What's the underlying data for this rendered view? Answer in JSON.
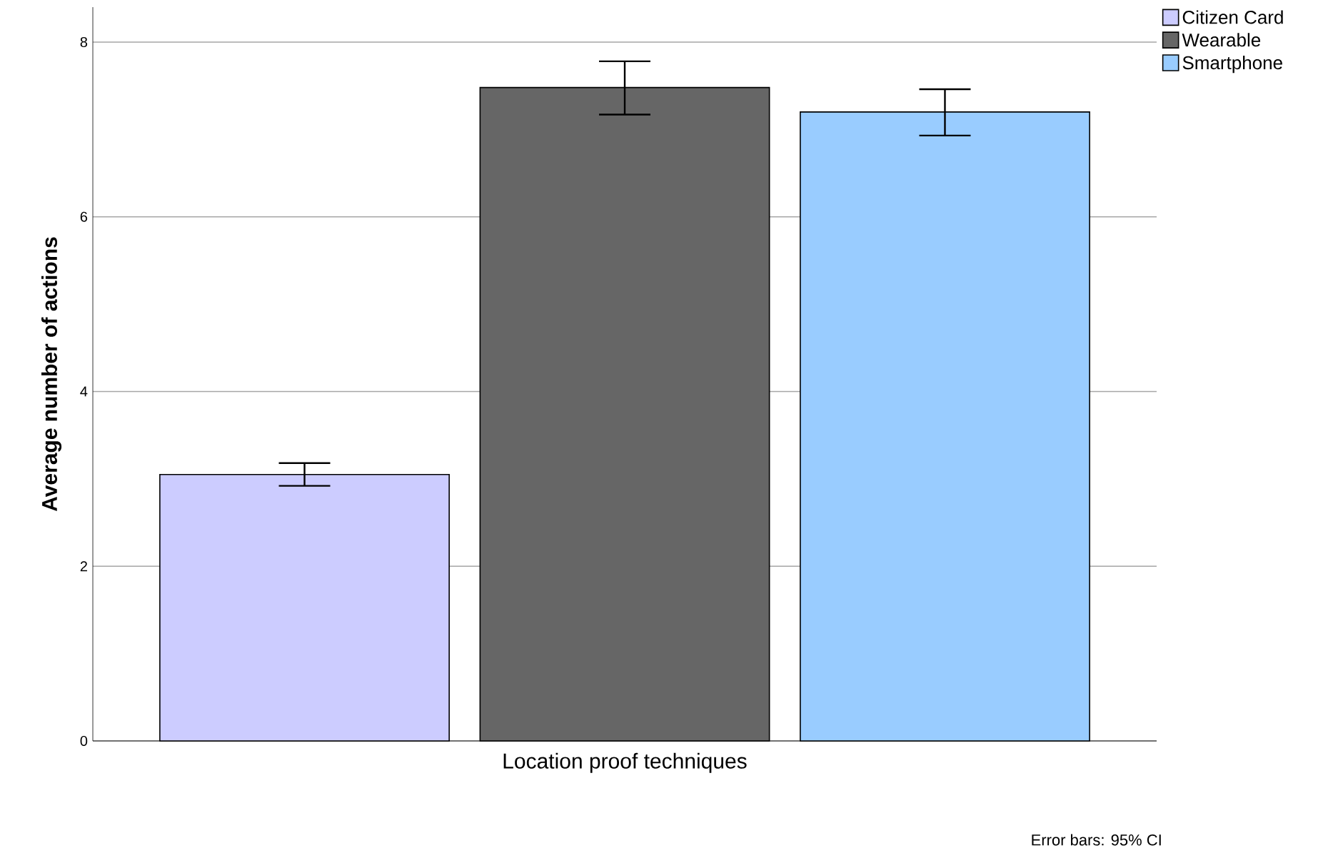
{
  "chart_data": {
    "type": "bar",
    "xlabel": "Location proof techniques",
    "ylabel": "Average number of actions",
    "categories": [
      null
    ],
    "series": [
      {
        "name": "Citizen Card",
        "color": "#ccccff",
        "values": [
          3.05
        ],
        "errors": [
          [
            2.92,
            3.18
          ]
        ]
      },
      {
        "name": "Wearable",
        "color": "#666666",
        "values": [
          7.48
        ],
        "errors": [
          [
            7.17,
            7.78
          ]
        ]
      },
      {
        "name": "Smartphone",
        "color": "#99ccff",
        "values": [
          7.2
        ],
        "errors": [
          [
            6.93,
            7.46
          ]
        ]
      }
    ],
    "ylim": [
      0,
      8.4
    ],
    "yticks": [
      0,
      2,
      4,
      6,
      8
    ],
    "grid": "y",
    "legend": "top right",
    "annotations": [
      "Error bars: 95% CI"
    ]
  }
}
